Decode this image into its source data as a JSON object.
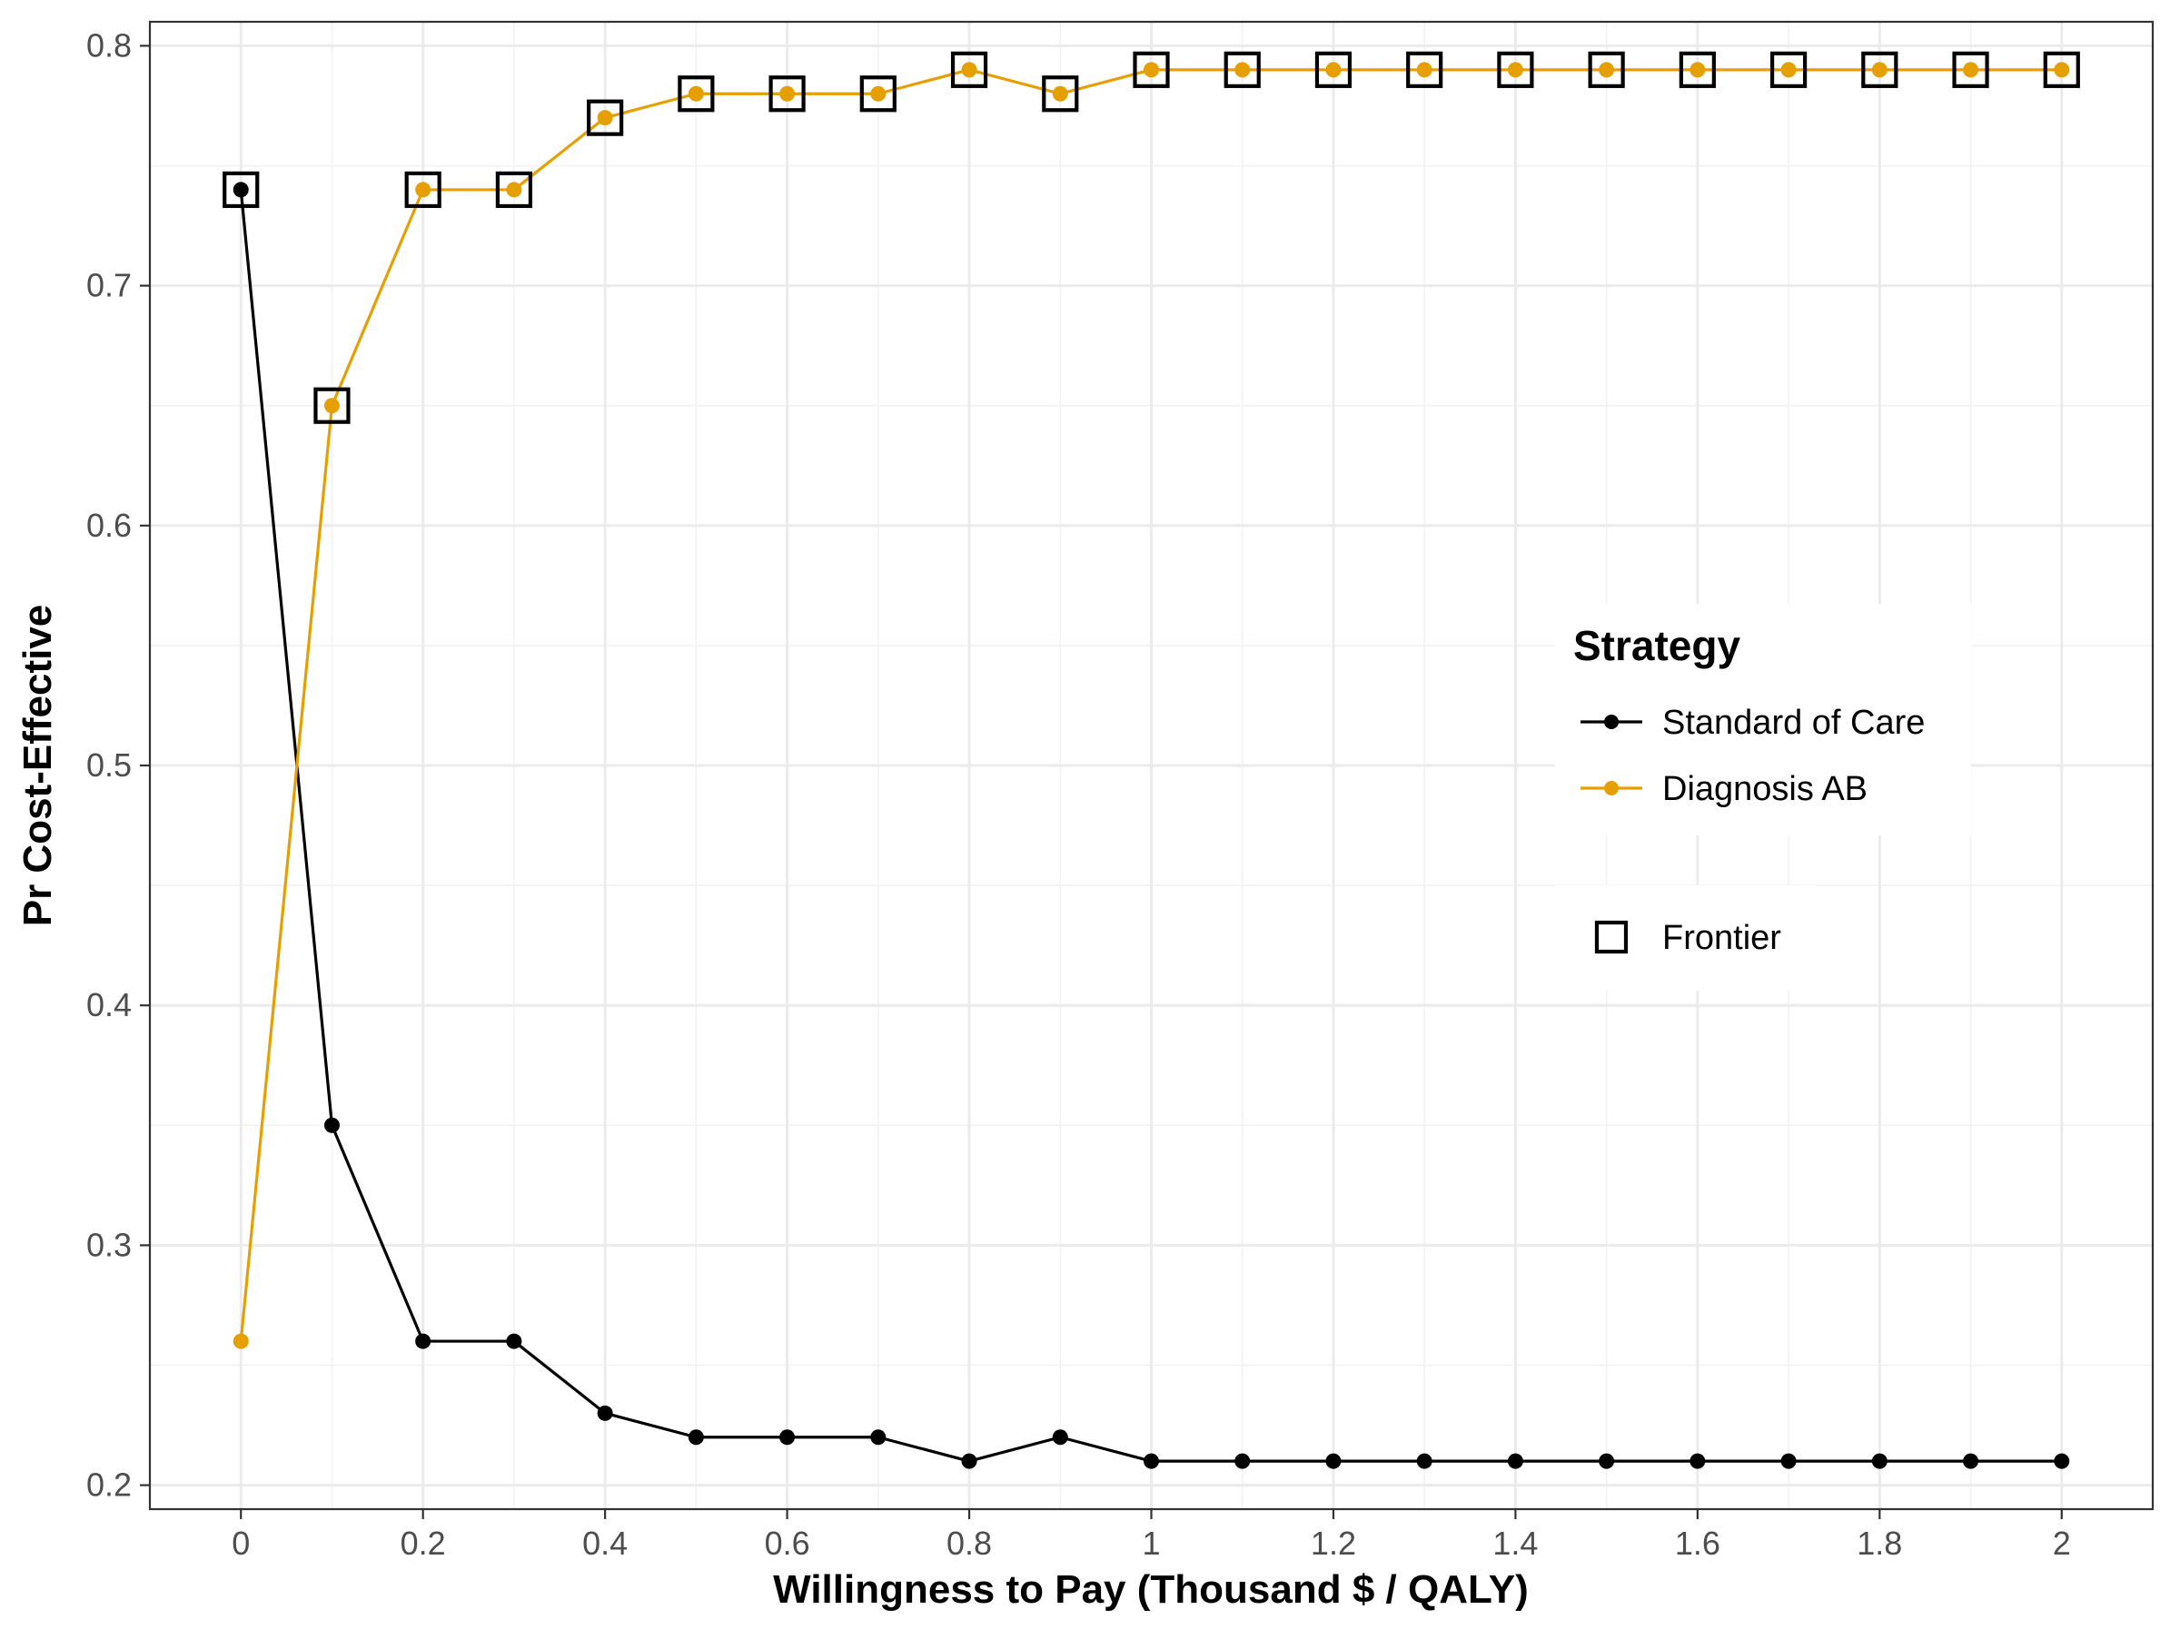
{
  "chart_data": {
    "type": "line",
    "title": "",
    "xlabel": "Willingness to Pay (Thousand $ / QALY)",
    "ylabel": "Pr Cost-Effective",
    "xlim": [
      -0.1,
      2.1
    ],
    "ylim": [
      0.19,
      0.81
    ],
    "x_ticks": [
      0,
      0.2,
      0.4,
      0.6,
      0.8,
      1,
      1.2,
      1.4,
      1.6,
      1.8,
      2
    ],
    "x_tick_labels": [
      "0",
      "0.2",
      "0.4",
      "0.6",
      "0.8",
      "1",
      "1.2",
      "1.4",
      "1.6",
      "1.8",
      "2"
    ],
    "y_ticks": [
      0.2,
      0.3,
      0.4,
      0.5,
      0.6,
      0.7,
      0.8
    ],
    "y_tick_labels": [
      "0.2",
      "0.3",
      "0.4",
      "0.5",
      "0.6",
      "0.7",
      "0.8"
    ],
    "grid": true,
    "x": [
      0,
      0.1,
      0.2,
      0.3,
      0.4,
      0.5,
      0.6,
      0.7,
      0.8,
      0.9,
      1,
      1.1,
      1.2,
      1.3,
      1.4,
      1.5,
      1.6,
      1.7,
      1.8,
      1.9,
      2
    ],
    "series": [
      {
        "name": "Standard of Care",
        "color": "#000000",
        "values": [
          0.74,
          0.35,
          0.26,
          0.26,
          0.23,
          0.22,
          0.22,
          0.22,
          0.21,
          0.22,
          0.21,
          0.21,
          0.21,
          0.21,
          0.21,
          0.21,
          0.21,
          0.21,
          0.21,
          0.21,
          0.21
        ]
      },
      {
        "name": "Diagnosis AB",
        "color": "#E69F00",
        "values": [
          0.26,
          0.65,
          0.74,
          0.74,
          0.77,
          0.78,
          0.78,
          0.78,
          0.79,
          0.78,
          0.79,
          0.79,
          0.79,
          0.79,
          0.79,
          0.79,
          0.79,
          0.79,
          0.79,
          0.79,
          0.79
        ]
      }
    ],
    "frontier": {
      "name": "Frontier",
      "x": [
        0,
        0.1,
        0.2,
        0.3,
        0.4,
        0.5,
        0.6,
        0.7,
        0.8,
        0.9,
        1,
        1.1,
        1.2,
        1.3,
        1.4,
        1.5,
        1.6,
        1.7,
        1.8,
        1.9,
        2
      ],
      "values": [
        0.74,
        0.65,
        0.74,
        0.74,
        0.77,
        0.78,
        0.78,
        0.78,
        0.79,
        0.78,
        0.79,
        0.79,
        0.79,
        0.79,
        0.79,
        0.79,
        0.79,
        0.79,
        0.79,
        0.79,
        0.79
      ]
    },
    "legend": {
      "title": "Strategy",
      "position": "right",
      "entries": [
        "Standard of Care",
        "Diagnosis AB"
      ],
      "frontier_label": "Frontier"
    }
  }
}
